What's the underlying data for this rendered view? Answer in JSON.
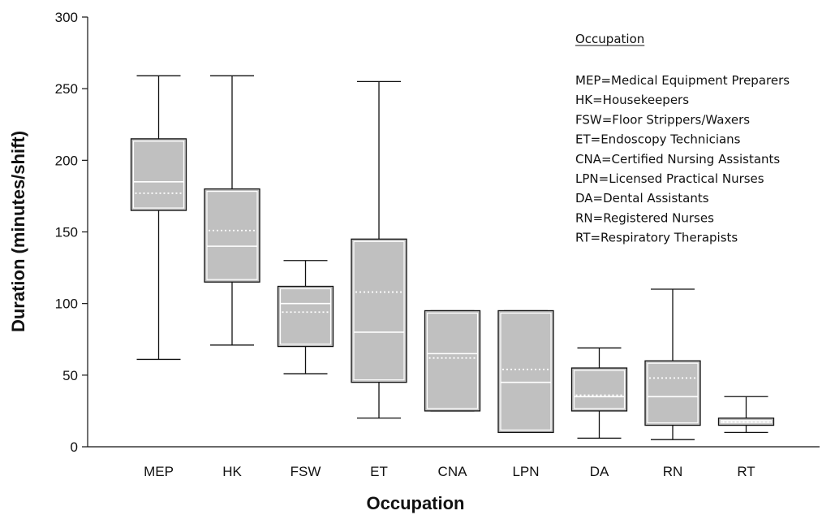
{
  "chart_data": {
    "type": "box",
    "title": "",
    "xlabel": "Occupation",
    "ylabel": "Duration (minutes/shift)",
    "ylim": [
      0,
      300
    ],
    "yticks": [
      0,
      50,
      100,
      150,
      200,
      250,
      300
    ],
    "grid": false,
    "categories": [
      "MEP",
      "HK",
      "FSW",
      "ET",
      "CNA",
      "LPN",
      "DA",
      "RN",
      "RT"
    ],
    "boxes": [
      {
        "name": "MEP",
        "min": 61,
        "q1": 165,
        "median": 185,
        "mean": 177,
        "q3": 215,
        "max": 259
      },
      {
        "name": "HK",
        "min": 71,
        "q1": 115,
        "median": 140,
        "mean": 151,
        "q3": 180,
        "max": 259
      },
      {
        "name": "FSW",
        "min": 51,
        "q1": 70,
        "median": 100,
        "mean": 94,
        "q3": 112,
        "max": 130
      },
      {
        "name": "ET",
        "min": 20,
        "q1": 45,
        "median": 80,
        "mean": 108,
        "q3": 145,
        "max": 255
      },
      {
        "name": "CNA",
        "min": 25,
        "q1": 25,
        "median": 65,
        "mean": 62,
        "q3": 95,
        "max": 95
      },
      {
        "name": "LPN",
        "min": 10,
        "q1": 10,
        "median": 45,
        "mean": 54,
        "q3": 95,
        "max": 95
      },
      {
        "name": "DA",
        "min": 6,
        "q1": 25,
        "median": 35,
        "mean": 36,
        "q3": 55,
        "max": 69
      },
      {
        "name": "RN",
        "min": 5,
        "q1": 15,
        "median": 35,
        "mean": 48,
        "q3": 60,
        "max": 110
      },
      {
        "name": "RT",
        "min": 10,
        "q1": 15,
        "median": 18,
        "mean": 17,
        "q3": 20,
        "max": 35
      }
    ],
    "legend": {
      "title": "Occupation",
      "placement": "top-right",
      "entries": [
        "MEP=Medical Equipment Preparers",
        "HK=Housekeepers",
        "FSW=Floor Strippers/Waxers",
        "ET=Endoscopy Technicians",
        "CNA=Certified Nursing Assistants",
        "LPN=Licensed Practical Nurses",
        "DA=Dental Assistants",
        "RN=Registered Nurses",
        "RT=Respiratory Therapists"
      ]
    },
    "colors": {
      "box_fill": "#c0c0c0",
      "line": "#111111",
      "median_line": "#ffffff",
      "mean_line": "#ffffff"
    }
  }
}
